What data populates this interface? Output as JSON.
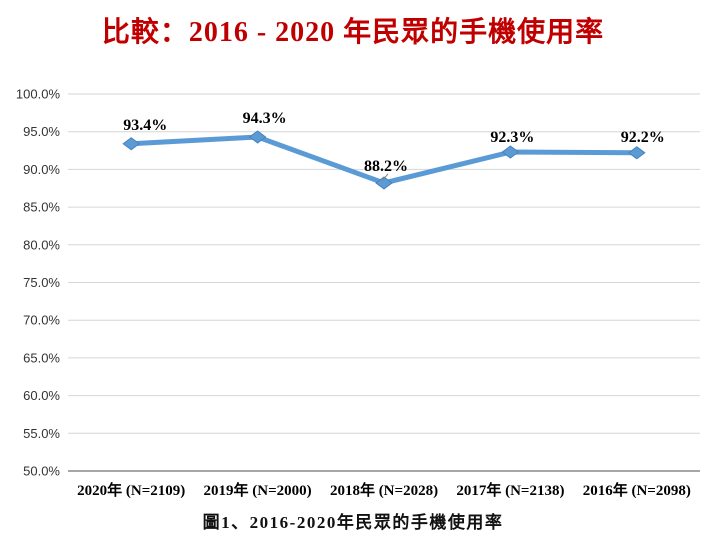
{
  "title": "比較：2016 - 2020 年民眾的手機使用率",
  "caption": "圖1、2016-2020年民眾的手機使用率",
  "colors": {
    "title": "#C00000",
    "line": "#5B9BD5",
    "marker_edge": "#4A82B8",
    "gridline": "#D6D6D6",
    "axis_line": "#A6A6A6",
    "tick_label": "#333333",
    "data_label": "#000000",
    "leader_line": "#808080"
  },
  "chart_data": {
    "type": "line",
    "title": "比較：2016 - 2020 年民眾的手機使用率",
    "categories": [
      "2020年 (N=2109)",
      "2019年 (N=2000)",
      "2018年 (N=2028)",
      "2017年 (N=2138)",
      "2016年 (N=2098)"
    ],
    "series": [
      {
        "name": "手機使用率",
        "values": [
          93.4,
          94.3,
          88.2,
          92.3,
          92.2
        ]
      }
    ],
    "data_labels": [
      "93.4%",
      "94.3%",
      "88.2%",
      "92.3%",
      "92.2%"
    ],
    "xlabel": "",
    "ylabel": "",
    "ylim": [
      50,
      100
    ],
    "ytick_step": 5,
    "ytick_labels": [
      "100.0%",
      "95.0%",
      "90.0%",
      "85.0%",
      "80.0%",
      "75.0%",
      "70.0%",
      "65.0%",
      "60.0%",
      "55.0%",
      "50.0%"
    ],
    "grid": true,
    "legend_position": "none",
    "marker": "diamond"
  }
}
